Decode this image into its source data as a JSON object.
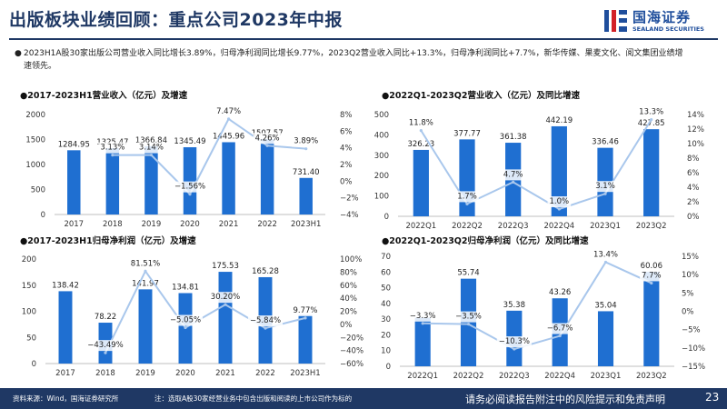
{
  "page": {
    "title": "出版板块业绩回顾：重点公司2023年中报",
    "summary_bullet": "●",
    "summary": "2023H1A股30家出版公司营业收入同比增长3.89%，归母净利润同比增长9.77%，2023Q2营业收入同比+13.3%，归母净利润同比+7.7%，新华传媒、果麦文化、阅文集团业绩增速领先。",
    "logo": {
      "name_cn": "国海证券",
      "name_en": "SEALAND SECURITIES"
    },
    "footer": {
      "source": "资料来源：Wind，国海证券研究所",
      "note": "注：选取A股30家经营业务中包含出版和阅读的上市公司作为标的",
      "disclaimer": "请务必阅读报告附注中的风险提示和免责声明",
      "page_number": "23"
    },
    "colors": {
      "bar": "#1f6fd1",
      "line": "#a9c7ec",
      "title": "#1f3864",
      "footer": "#1f3864"
    }
  },
  "chart_data": [
    {
      "type": "bar",
      "title": "●2017-2023H1营业收入（亿元）及增速",
      "categories": [
        "2017",
        "2018",
        "2019",
        "2020",
        "2021",
        "2022",
        "2023H1"
      ],
      "series": [
        {
          "values": [
            1284.95,
            1325.47,
            1366.84,
            1345.49,
            1445.96,
            1507.57,
            731.4
          ],
          "labels": [
            "1284.95",
            "1325.47",
            "1366.84",
            "1345.49",
            "1445.96",
            "1507.57",
            "731.40"
          ]
        },
        {
          "type": "line",
          "axis": "right",
          "values": [
            null,
            3.13,
            3.14,
            -1.56,
            7.47,
            4.26,
            3.89
          ],
          "labels": [
            "",
            "3.13%",
            "3.14%",
            "−1.56%",
            "7.47%",
            "4.26%",
            "3.89%"
          ]
        }
      ],
      "ylim": [
        0,
        2000
      ],
      "yticks": [
        "0",
        "500",
        "1000",
        "1500",
        "2000"
      ],
      "y2lim": [
        -4,
        8
      ],
      "y2ticks": [
        "−4%",
        "−2%",
        "0%",
        "2%",
        "4%",
        "6%",
        "8%"
      ]
    },
    {
      "type": "bar",
      "title": "●2022Q1-2023Q2营业收入（亿元）及同比增速",
      "categories": [
        "2022Q1",
        "2022Q2",
        "2022Q3",
        "2022Q4",
        "2023Q1",
        "2023Q2"
      ],
      "series": [
        {
          "values": [
            326.23,
            377.77,
            361.38,
            442.19,
            336.46,
            427.85
          ],
          "labels": [
            "326.23",
            "377.77",
            "361.38",
            "442.19",
            "336.46",
            "427.85"
          ]
        },
        {
          "type": "line",
          "axis": "right",
          "values": [
            11.8,
            1.7,
            4.7,
            1.0,
            3.1,
            13.3
          ],
          "labels": [
            "11.8%",
            "1.7%",
            "4.7%",
            "1.0%",
            "3.1%",
            "13.3%"
          ]
        }
      ],
      "ylim": [
        0,
        500
      ],
      "yticks": [
        "0",
        "100",
        "200",
        "300",
        "400",
        "500"
      ],
      "y2lim": [
        0,
        14
      ],
      "y2ticks": [
        "0%",
        "2%",
        "4%",
        "6%",
        "8%",
        "10%",
        "12%",
        "14%"
      ]
    },
    {
      "type": "bar",
      "title": "●2017-2023H1归母净利润（亿元）及增速",
      "categories": [
        "2017",
        "2018",
        "2019",
        "2020",
        "2021",
        "2022",
        "2023H1"
      ],
      "series": [
        {
          "values": [
            138.42,
            78.22,
            141.97,
            134.81,
            175.53,
            165.28,
            92.69
          ],
          "labels": [
            "138.42",
            "78.22",
            "141.97",
            "134.81",
            "175.53",
            "165.28",
            ""
          ]
        },
        {
          "type": "line",
          "axis": "right",
          "values": [
            null,
            -43.49,
            81.51,
            -5.05,
            30.2,
            -5.84,
            9.77
          ],
          "labels": [
            "",
            "−43.49%",
            "81.51%",
            "−5.05%",
            "30.20%",
            "−5.84%",
            "9.77%"
          ]
        }
      ],
      "ylim": [
        0,
        200
      ],
      "yticks": [
        "0",
        "50",
        "100",
        "150",
        "200"
      ],
      "y2lim": [
        -60,
        100
      ],
      "y2ticks": [
        "−60%",
        "−40%",
        "−20%",
        "0%",
        "20%",
        "40%",
        "60%",
        "80%",
        "100%"
      ]
    },
    {
      "type": "bar",
      "title": "●2022Q1-2023Q2归母净利润（亿元）及同比增速",
      "categories": [
        "2022Q1",
        "2022Q2",
        "2022Q3",
        "2022Q4",
        "2023Q1",
        "2023Q2"
      ],
      "series": [
        {
          "values": [
            30.9,
            55.74,
            35.38,
            43.26,
            35.04,
            60.06
          ],
          "labels": [
            "",
            "55.74",
            "35.38",
            "43.26",
            "35.04",
            "60.06"
          ]
        },
        {
          "type": "line",
          "axis": "right",
          "values": [
            -3.3,
            -3.5,
            -10.3,
            -6.7,
            13.4,
            7.7
          ],
          "labels": [
            "−3.3%",
            "−3.5%",
            "−10.3%",
            "−6.7%",
            "13.4%",
            "7.7%"
          ]
        }
      ],
      "ylim": [
        0,
        70
      ],
      "yticks": [
        "0",
        "10",
        "20",
        "30",
        "40",
        "50",
        "60",
        "70"
      ],
      "y2lim": [
        -15,
        15
      ],
      "y2ticks": [
        "−15%",
        "−10%",
        "−5%",
        "0%",
        "5%",
        "10%",
        "15%"
      ]
    }
  ]
}
